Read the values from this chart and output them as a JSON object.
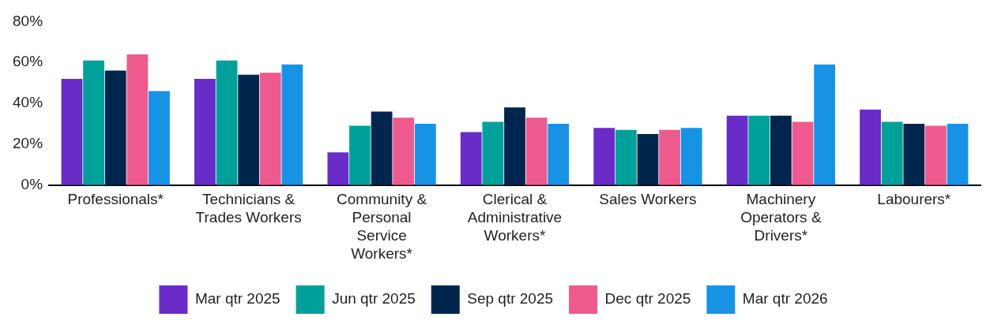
{
  "chart_data": {
    "type": "bar",
    "categories": [
      "Professionals*",
      "Technicians & Trades Workers",
      "Community & Personal Service Workers*",
      "Clerical & Administrative Workers*",
      "Sales Workers",
      "Machinery Operators & Drivers*",
      "Labourers*"
    ],
    "series": [
      {
        "name": "Mar qtr 2025",
        "color": "#6a2bc8",
        "values": [
          52,
          52,
          16,
          26,
          28,
          34,
          37
        ]
      },
      {
        "name": "Jun qtr 2025",
        "color": "#00a19a",
        "values": [
          61,
          61,
          29,
          31,
          27,
          34,
          31
        ]
      },
      {
        "name": "Sep qtr 2025",
        "color": "#00264d",
        "values": [
          56,
          54,
          36,
          38,
          25,
          34,
          30
        ]
      },
      {
        "name": "Dec qtr 2025",
        "color": "#ee5a8d",
        "values": [
          64,
          55,
          33,
          33,
          27,
          31,
          29
        ]
      },
      {
        "name": "Mar qtr 2026",
        "color": "#1793e6",
        "values": [
          46,
          59,
          30,
          30,
          28,
          59,
          30
        ]
      }
    ],
    "ylim": [
      0,
      80
    ],
    "yticks": [
      {
        "value": 0,
        "label": "0%"
      },
      {
        "value": 20,
        "label": "20%"
      },
      {
        "value": 40,
        "label": "40%"
      },
      {
        "value": 60,
        "label": "60%"
      },
      {
        "value": 80,
        "label": "80%"
      }
    ],
    "grid": false,
    "legend": "bottom"
  }
}
